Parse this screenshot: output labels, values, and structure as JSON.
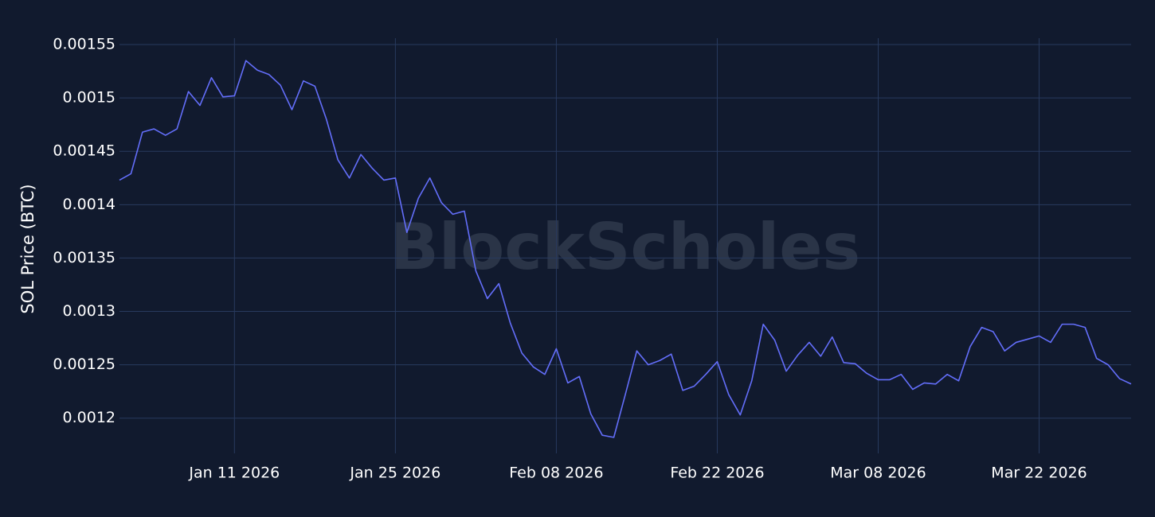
{
  "chart_data": {
    "type": "line",
    "y_label": "SOL Price (BTC)",
    "watermark": "BlockScholes",
    "x": [
      "2026-01-01",
      "2026-01-02",
      "2026-01-03",
      "2026-01-04",
      "2026-01-05",
      "2026-01-06",
      "2026-01-07",
      "2026-01-08",
      "2026-01-09",
      "2026-01-10",
      "2026-01-11",
      "2026-01-12",
      "2026-01-13",
      "2026-01-14",
      "2026-01-15",
      "2026-01-16",
      "2026-01-17",
      "2026-01-18",
      "2026-01-19",
      "2026-01-20",
      "2026-01-21",
      "2026-01-22",
      "2026-01-23",
      "2026-01-24",
      "2026-01-25",
      "2026-01-26",
      "2026-01-27",
      "2026-01-28",
      "2026-01-29",
      "2026-01-30",
      "2026-01-31",
      "2026-02-01",
      "2026-02-02",
      "2026-02-03",
      "2026-02-04",
      "2026-02-05",
      "2026-02-06",
      "2026-02-07",
      "2026-02-08",
      "2026-02-09",
      "2026-02-10",
      "2026-02-11",
      "2026-02-12",
      "2026-02-13",
      "2026-02-14",
      "2026-02-15",
      "2026-02-16",
      "2026-02-17",
      "2026-02-18",
      "2026-02-19",
      "2026-02-20",
      "2026-02-21",
      "2026-02-22",
      "2026-02-23",
      "2026-02-24",
      "2026-02-25",
      "2026-02-26",
      "2026-02-27",
      "2026-02-28",
      "2026-03-01",
      "2026-03-02",
      "2026-03-03",
      "2026-03-04",
      "2026-03-05",
      "2026-03-06",
      "2026-03-07",
      "2026-03-08",
      "2026-03-09",
      "2026-03-10",
      "2026-03-11",
      "2026-03-12",
      "2026-03-13",
      "2026-03-14",
      "2026-03-15",
      "2026-03-16",
      "2026-03-17",
      "2026-03-18",
      "2026-03-19",
      "2026-03-20",
      "2026-03-21",
      "2026-03-22",
      "2026-03-23",
      "2026-03-24",
      "2026-03-25",
      "2026-03-26",
      "2026-03-27",
      "2026-03-28",
      "2026-03-29",
      "2026-03-30"
    ],
    "series": [
      {
        "name": "SOL/BTC",
        "color": "#636efa",
        "values": [
          0.001423,
          0.001429,
          0.001468,
          0.001471,
          0.001465,
          0.001471,
          0.001506,
          0.001493,
          0.001519,
          0.001501,
          0.001502,
          0.001535,
          0.001526,
          0.001522,
          0.001512,
          0.001489,
          0.001516,
          0.001511,
          0.00148,
          0.001442,
          0.001425,
          0.001447,
          0.001434,
          0.001423,
          0.001425,
          0.001374,
          0.001406,
          0.001425,
          0.001402,
          0.001391,
          0.001394,
          0.001338,
          0.001312,
          0.001326,
          0.001289,
          0.001261,
          0.001248,
          0.001241,
          0.001265,
          0.001233,
          0.001239,
          0.001204,
          0.001184,
          0.001182,
          0.001222,
          0.001263,
          0.00125,
          0.001254,
          0.00126,
          0.001226,
          0.00123,
          0.001241,
          0.001253,
          0.001222,
          0.001203,
          0.001235,
          0.001288,
          0.001273,
          0.001244,
          0.001259,
          0.001271,
          0.001258,
          0.001276,
          0.001252,
          0.001251,
          0.001242,
          0.001236,
          0.001236,
          0.001241,
          0.001227,
          0.001233,
          0.001232,
          0.001241,
          0.001235,
          0.001267,
          0.001285,
          0.001281,
          0.001263,
          0.001271,
          0.001274,
          0.001277,
          0.001271,
          0.001288,
          0.001288,
          0.001285,
          0.001256,
          0.00125,
          0.001237,
          0.001232
        ]
      }
    ],
    "xlim": [
      "2026-01-01",
      "2026-03-30"
    ],
    "xticks": [
      {
        "value": "2026-01-11",
        "label": "Jan 11 2026"
      },
      {
        "value": "2026-01-25",
        "label": "Jan 25 2026"
      },
      {
        "value": "2026-02-08",
        "label": "Feb 08 2026"
      },
      {
        "value": "2026-02-22",
        "label": "Feb 22 2026"
      },
      {
        "value": "2026-03-08",
        "label": "Mar 08 2026"
      },
      {
        "value": "2026-03-22",
        "label": "Mar 22 2026"
      }
    ],
    "ylim": [
      0.001167,
      0.001556
    ],
    "yticks": [
      0.0012,
      0.00125,
      0.0013,
      0.00135,
      0.0014,
      0.00145,
      0.0015,
      0.00155
    ],
    "grid": true
  }
}
